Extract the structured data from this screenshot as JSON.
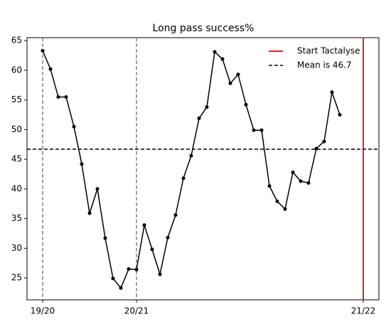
{
  "chart_data": {
    "type": "line",
    "title": "Long pass success%",
    "x": [
      0,
      1,
      2,
      3,
      4,
      5,
      6,
      7,
      8,
      9,
      10,
      11,
      12,
      13,
      14,
      15,
      16,
      17,
      18,
      19,
      20,
      21,
      22,
      23,
      24,
      25,
      26,
      27,
      28,
      29,
      30,
      31,
      32,
      33,
      34,
      35,
      36,
      37,
      38
    ],
    "series": [
      {
        "name": null,
        "color": "#000000",
        "values": [
          63.3,
          60.2,
          55.5,
          55.5,
          50.5,
          44.2,
          35.9,
          40.0,
          31.7,
          24.9,
          23.3,
          26.5,
          26.4,
          33.9,
          29.8,
          25.6,
          31.8,
          35.6,
          41.8,
          45.6,
          51.9,
          53.8,
          63.1,
          61.9,
          57.8,
          59.3,
          54.2,
          49.9,
          49.9,
          40.5,
          37.9,
          36.6,
          42.8,
          41.3,
          41.0,
          46.8,
          48.0,
          56.3,
          52.5
        ]
      }
    ],
    "xlim": [
      -2,
      43
    ],
    "ylim": [
      21.3,
      65.5
    ],
    "xticks": [
      {
        "value": 0,
        "label": "19/20"
      },
      {
        "value": 12,
        "label": "20/21"
      },
      {
        "value": 41,
        "label": "21/22"
      }
    ],
    "yticks": [
      25,
      30,
      35,
      40,
      45,
      50,
      55,
      60,
      65
    ],
    "season_lines": {
      "values": [
        0,
        12
      ],
      "color": "#808080"
    },
    "start_line": {
      "name": "Start Tactalyse",
      "value": 41,
      "color": "#d62728"
    },
    "mean_line": {
      "name": "Mean is 46.7",
      "value": 46.7,
      "color": "#000000"
    },
    "legend": "upper right",
    "grid": false
  }
}
